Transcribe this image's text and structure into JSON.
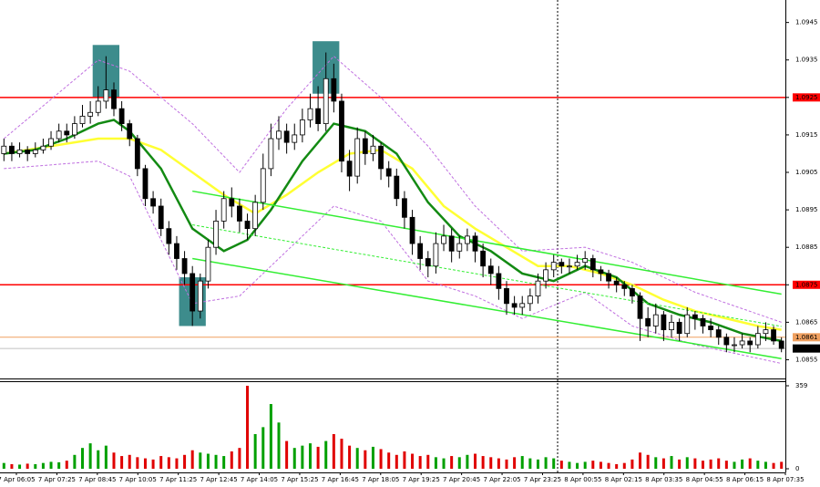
{
  "chart_data": {
    "type": "candlestick",
    "ylim": [
      1.085,
      1.0951
    ],
    "yticks": [
      1.0945,
      1.0935,
      1.0925,
      1.0915,
      1.0905,
      1.0895,
      1.0885,
      1.0875,
      1.0865,
      1.0855
    ],
    "xtick_labels": [
      "7 Apr 06:05",
      "7 Apr 07:25",
      "7 Apr 08:45",
      "7 Apr 10:05",
      "7 Apr 11:25",
      "7 Apr 12:45",
      "7 Apr 14:05",
      "7 Apr 15:25",
      "7 Apr 16:45",
      "7 Apr 18:05",
      "7 Apr 19:25",
      "7 Apr 20:45",
      "7 Apr 22:05",
      "7 Apr 23:25",
      "8 Apr 00:55",
      "8 Apr 02:15",
      "8 Apr 03:35",
      "8 Apr 04:55",
      "8 Apr 06:15",
      "8 Apr 07:35"
    ],
    "open": [
      1.091,
      1.0912,
      1.091,
      1.0911,
      1.091,
      1.0911,
      1.0912,
      1.0914,
      1.0916,
      1.0915,
      1.0918,
      1.092,
      1.0921,
      1.0924,
      1.0927,
      1.0922,
      1.0918,
      1.0914,
      1.0906,
      1.0898,
      1.0896,
      1.089,
      1.0886,
      1.0882,
      1.0878,
      1.0868,
      1.0876,
      1.0885,
      1.0892,
      1.0898,
      1.0896,
      1.0892,
      1.089,
      1.0897,
      1.0906,
      1.0914,
      1.0916,
      1.0913,
      1.0915,
      1.0919,
      1.0922,
      1.0918,
      1.093,
      1.0924,
      1.0908,
      1.0904,
      1.0914,
      1.091,
      1.0912,
      1.0906,
      1.0904,
      1.0898,
      1.0893,
      1.0886,
      1.0882,
      1.088,
      1.0886,
      1.0888,
      1.0884,
      1.0886,
      1.0888,
      1.0884,
      1.088,
      1.0878,
      1.0874,
      1.087,
      1.0869,
      1.087,
      1.0872,
      1.0876,
      1.0879,
      1.0881,
      1.088,
      1.088,
      1.0881,
      1.0882,
      1.0879,
      1.0878,
      1.0876,
      1.0875,
      1.0874,
      1.0872,
      1.0866,
      1.0864,
      1.0867,
      1.0863,
      1.0865,
      1.0862,
      1.0867,
      1.0866,
      1.0864,
      1.0863,
      1.0861,
      1.0859,
      1.0859,
      1.086,
      1.0859,
      1.0862,
      1.0863,
      1.086
    ],
    "high": [
      1.0914,
      1.0913,
      1.0913,
      1.0912,
      1.0913,
      1.0914,
      1.0916,
      1.0918,
      1.0918,
      1.092,
      1.0923,
      1.0924,
      1.0928,
      1.0936,
      1.0929,
      1.0924,
      1.0919,
      1.0915,
      1.0907,
      1.09,
      1.0898,
      1.0892,
      1.0888,
      1.0884,
      1.088,
      1.0878,
      1.0887,
      1.0895,
      1.09,
      1.0901,
      1.0898,
      1.0894,
      1.0899,
      1.091,
      1.0918,
      1.092,
      1.0918,
      1.0918,
      1.0922,
      1.0926,
      1.0928,
      1.0937,
      1.0934,
      1.0926,
      1.0911,
      1.0917,
      1.0916,
      1.0915,
      1.0913,
      1.0908,
      1.0906,
      1.09,
      1.0895,
      1.0888,
      1.0884,
      1.0889,
      1.0891,
      1.089,
      1.0888,
      1.089,
      1.0889,
      1.0886,
      1.0882,
      1.088,
      1.0876,
      1.0872,
      1.0872,
      1.0874,
      1.0878,
      1.0881,
      1.0883,
      1.0882,
      1.0882,
      1.0883,
      1.0884,
      1.0883,
      1.088,
      1.0879,
      1.0877,
      1.0876,
      1.0875,
      1.0873,
      1.0869,
      1.087,
      1.0868,
      1.0867,
      1.0866,
      1.0869,
      1.0868,
      1.0867,
      1.0866,
      1.0864,
      1.0862,
      1.0861,
      1.0862,
      1.0861,
      1.0864,
      1.0865,
      1.0864,
      1.0861
    ],
    "low": [
      1.0908,
      1.0908,
      1.0909,
      1.0908,
      1.0909,
      1.091,
      1.0911,
      1.0913,
      1.0913,
      1.0914,
      1.0917,
      1.0918,
      1.092,
      1.0922,
      1.092,
      1.0916,
      1.0912,
      1.0904,
      1.0896,
      1.0894,
      1.0888,
      1.0883,
      1.0879,
      1.0875,
      1.0864,
      1.0866,
      1.0874,
      1.0883,
      1.089,
      1.0893,
      1.0889,
      1.0887,
      1.0888,
      1.0895,
      1.0904,
      1.0911,
      1.091,
      1.0911,
      1.0913,
      1.0917,
      1.0916,
      1.0916,
      1.0921,
      1.0905,
      1.09,
      1.0902,
      1.0907,
      1.0908,
      1.0903,
      1.0901,
      1.0896,
      1.089,
      1.0883,
      1.0879,
      1.0877,
      1.0878,
      1.0884,
      1.0881,
      1.0882,
      1.0884,
      1.0881,
      1.0877,
      1.0875,
      1.0871,
      1.0867,
      1.0867,
      1.0867,
      1.0868,
      1.087,
      1.0874,
      1.0877,
      1.0878,
      1.0878,
      1.0879,
      1.0879,
      1.0877,
      1.0876,
      1.0874,
      1.0873,
      1.0872,
      1.087,
      1.086,
      1.0861,
      1.0862,
      1.086,
      1.0861,
      1.086,
      1.0861,
      1.0863,
      1.0862,
      1.0861,
      1.0859,
      1.0857,
      1.0857,
      1.0858,
      1.0857,
      1.0858,
      1.086,
      1.0859,
      1.0857
    ],
    "close": [
      1.0912,
      1.091,
      1.0911,
      1.091,
      1.0911,
      1.0912,
      1.0914,
      1.0916,
      1.0915,
      1.0918,
      1.092,
      1.0921,
      1.0924,
      1.0927,
      1.0922,
      1.0918,
      1.0914,
      1.0906,
      1.0898,
      1.0896,
      1.089,
      1.0886,
      1.0882,
      1.0878,
      1.0868,
      1.0876,
      1.0885,
      1.0892,
      1.0898,
      1.0896,
      1.0892,
      1.089,
      1.0897,
      1.0906,
      1.0914,
      1.0916,
      1.0913,
      1.0915,
      1.0919,
      1.0922,
      1.0918,
      1.093,
      1.0924,
      1.0908,
      1.0904,
      1.0914,
      1.091,
      1.0912,
      1.0906,
      1.0904,
      1.0898,
      1.0893,
      1.0886,
      1.0882,
      1.088,
      1.0886,
      1.0888,
      1.0884,
      1.0886,
      1.0888,
      1.0884,
      1.088,
      1.0878,
      1.0874,
      1.087,
      1.0869,
      1.087,
      1.0872,
      1.0876,
      1.0879,
      1.0881,
      1.088,
      1.088,
      1.0881,
      1.0882,
      1.0879,
      1.0878,
      1.0876,
      1.0875,
      1.0874,
      1.0872,
      1.0866,
      1.0864,
      1.0867,
      1.0863,
      1.0865,
      1.0862,
      1.0867,
      1.0866,
      1.0864,
      1.0863,
      1.0861,
      1.0859,
      1.0859,
      1.086,
      1.0859,
      1.0862,
      1.0863,
      1.086,
      1.0858
    ],
    "volume": [
      25,
      20,
      18,
      22,
      20,
      25,
      30,
      28,
      35,
      60,
      90,
      110,
      80,
      100,
      70,
      55,
      60,
      50,
      45,
      40,
      55,
      50,
      45,
      60,
      80,
      70,
      65,
      60,
      55,
      75,
      90,
      359,
      150,
      180,
      280,
      200,
      120,
      90,
      100,
      110,
      95,
      120,
      150,
      130,
      100,
      90,
      80,
      95,
      85,
      70,
      60,
      75,
      65,
      55,
      60,
      50,
      45,
      55,
      50,
      60,
      65,
      55,
      50,
      45,
      40,
      50,
      55,
      45,
      40,
      50,
      45,
      35,
      30,
      25,
      30,
      35,
      30,
      25,
      20,
      25,
      40,
      70,
      60,
      50,
      45,
      55,
      40,
      50,
      45,
      35,
      40,
      45,
      35,
      30,
      40,
      45,
      35,
      30,
      25,
      30
    ],
    "volume_ylim": [
      0,
      359
    ],
    "volume_yticks": [
      359,
      0
    ],
    "up_color": "#00a000",
    "down_color": "#e00000",
    "series": [
      {
        "color": "#ffff33",
        "width": 2.5,
        "dash": false,
        "x": [
          0,
          6,
          12,
          16,
          20,
          24,
          28,
          32,
          36,
          40,
          44,
          48,
          52,
          56,
          60,
          64,
          68,
          72,
          76,
          80,
          84,
          88,
          92,
          96,
          99
        ],
        "values": [
          1.091,
          1.0912,
          1.0914,
          1.0914,
          1.0911,
          1.0905,
          1.0899,
          1.0894,
          1.0899,
          1.0905,
          1.091,
          1.0911,
          1.0906,
          1.0896,
          1.089,
          1.0885,
          1.088,
          1.088,
          1.0878,
          1.0875,
          1.0871,
          1.0868,
          1.0866,
          1.0864,
          1.0863
        ]
      },
      {
        "color": "#138a13",
        "width": 2.5,
        "dash": false,
        "x": [
          0,
          4,
          8,
          12,
          14,
          16,
          20,
          24,
          28,
          31,
          34,
          38,
          42,
          46,
          50,
          54,
          58,
          62,
          66,
          70,
          74,
          78,
          82,
          86,
          90,
          94,
          99
        ],
        "values": [
          1.091,
          1.0911,
          1.0914,
          1.0918,
          1.0919,
          1.0916,
          1.0906,
          1.089,
          1.0884,
          1.0887,
          1.0895,
          1.0908,
          1.0918,
          1.0916,
          1.091,
          1.0897,
          1.0888,
          1.0884,
          1.0878,
          1.0876,
          1.088,
          1.0877,
          1.087,
          1.0867,
          1.0865,
          1.0862,
          1.086
        ]
      },
      {
        "color": "#c070e0",
        "width": 1,
        "dash": true,
        "x": [
          0,
          12,
          16,
          24,
          30,
          36,
          42,
          48,
          54,
          60,
          66,
          74,
          80,
          88,
          99
        ],
        "values": [
          1.0914,
          1.0935,
          1.0932,
          1.0918,
          1.0905,
          1.0922,
          1.0936,
          1.0925,
          1.0912,
          1.0896,
          1.0884,
          1.0885,
          1.0881,
          1.0873,
          1.0865
        ]
      },
      {
        "color": "#c070e0",
        "width": 1,
        "dash": true,
        "x": [
          0,
          12,
          16,
          24,
          30,
          36,
          42,
          48,
          54,
          60,
          66,
          74,
          80,
          88,
          99
        ],
        "values": [
          1.0906,
          1.0908,
          1.0904,
          1.087,
          1.0872,
          1.0884,
          1.0896,
          1.0892,
          1.0876,
          1.0872,
          1.0866,
          1.0873,
          1.0864,
          1.0859,
          1.0854
        ]
      },
      {
        "color": "#33ee33",
        "width": 1.5,
        "dash": false,
        "x": [
          24,
          99
        ],
        "values": [
          1.09,
          1.08725
        ]
      },
      {
        "color": "#33ee33",
        "width": 1.5,
        "dash": false,
        "x": [
          24,
          99
        ],
        "values": [
          1.0882,
          1.08553
        ]
      },
      {
        "color": "#33ee33",
        "width": 1,
        "dash": true,
        "x": [
          24,
          99
        ],
        "values": [
          1.0891,
          1.08639
        ]
      }
    ],
    "highlights": [
      {
        "index": 13,
        "low": 1.0925,
        "high": 1.0939
      },
      {
        "index": 24,
        "low": 1.0864,
        "high": 1.0877
      },
      {
        "index": 41,
        "low": 1.0926,
        "high": 1.094
      }
    ],
    "highlight_color": "#3d8c8c",
    "levels": [
      {
        "value": 1.0925,
        "color": "#ff0000",
        "label_text_color": "#ffffff"
      },
      {
        "value": 1.0875,
        "color": "#ff0000",
        "label_text_color": "#ffffff"
      },
      {
        "value": 1.0861,
        "color": "#f0a060",
        "label_text_color": "#ffffff"
      },
      {
        "value": 1.0858,
        "color": "#c0c0c0",
        "label_text_color": "#ffffff",
        "label_bg": "#000000"
      }
    ],
    "separator_index": 70.5
  }
}
